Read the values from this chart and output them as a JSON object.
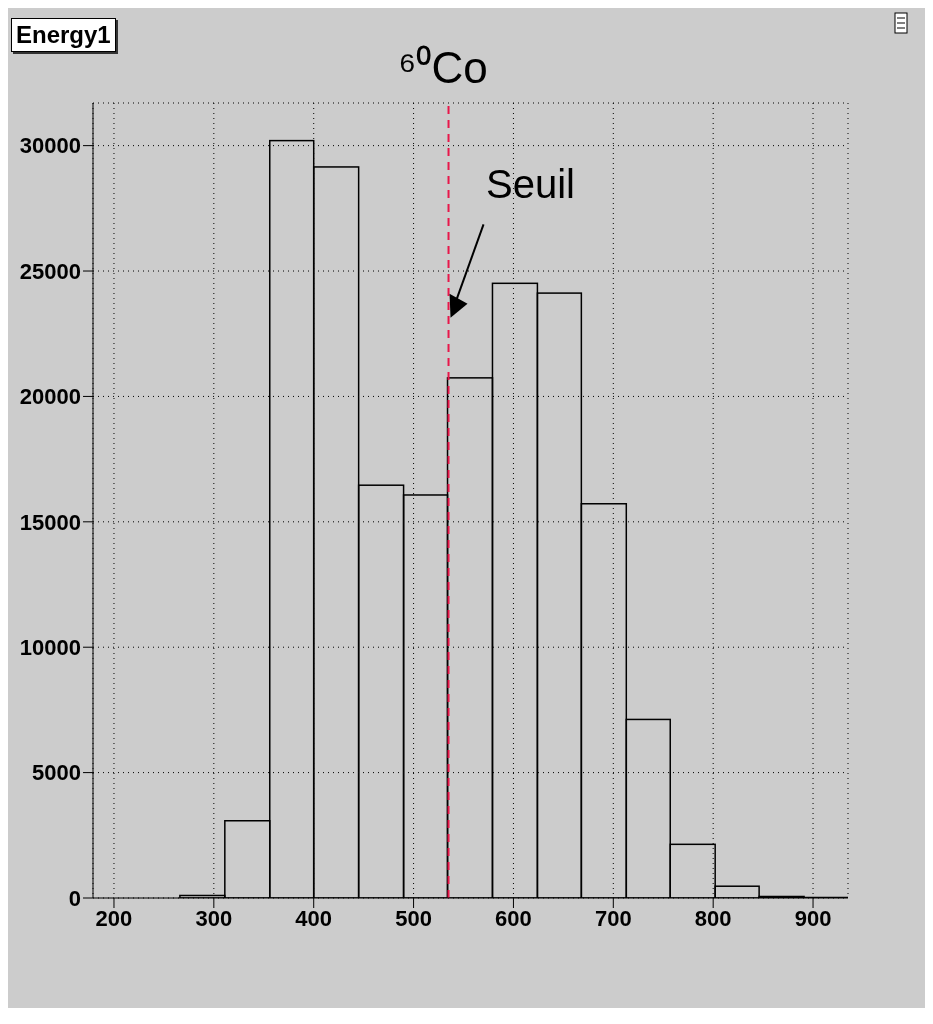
{
  "chart_data": {
    "type": "histogram",
    "title": "⁶⁰Co",
    "annotations": [
      "Energy1"
    ],
    "bins": [
      266,
      311,
      356,
      400,
      445,
      490,
      534,
      579,
      624,
      668,
      713,
      757,
      802,
      846,
      891,
      935
    ],
    "values": [
      100,
      3080,
      30200,
      29150,
      16460,
      16070,
      20740,
      24510,
      24120,
      15720,
      7120,
      2140,
      470,
      60,
      20
    ],
    "color": "#000000",
    "xlim": [
      179,
      935
    ],
    "xticks": [
      200,
      300,
      400,
      500,
      600,
      700,
      800,
      900
    ],
    "ylim": [
      0,
      31700
    ],
    "yticks": [
      0,
      5000,
      10000,
      15000,
      20000,
      25000,
      30000
    ],
    "grid": true,
    "ref_lines": [
      {
        "axis": "x",
        "value": 535,
        "label": "Seuil",
        "color": "#e8174a",
        "line_style": "dashed"
      }
    ]
  }
}
